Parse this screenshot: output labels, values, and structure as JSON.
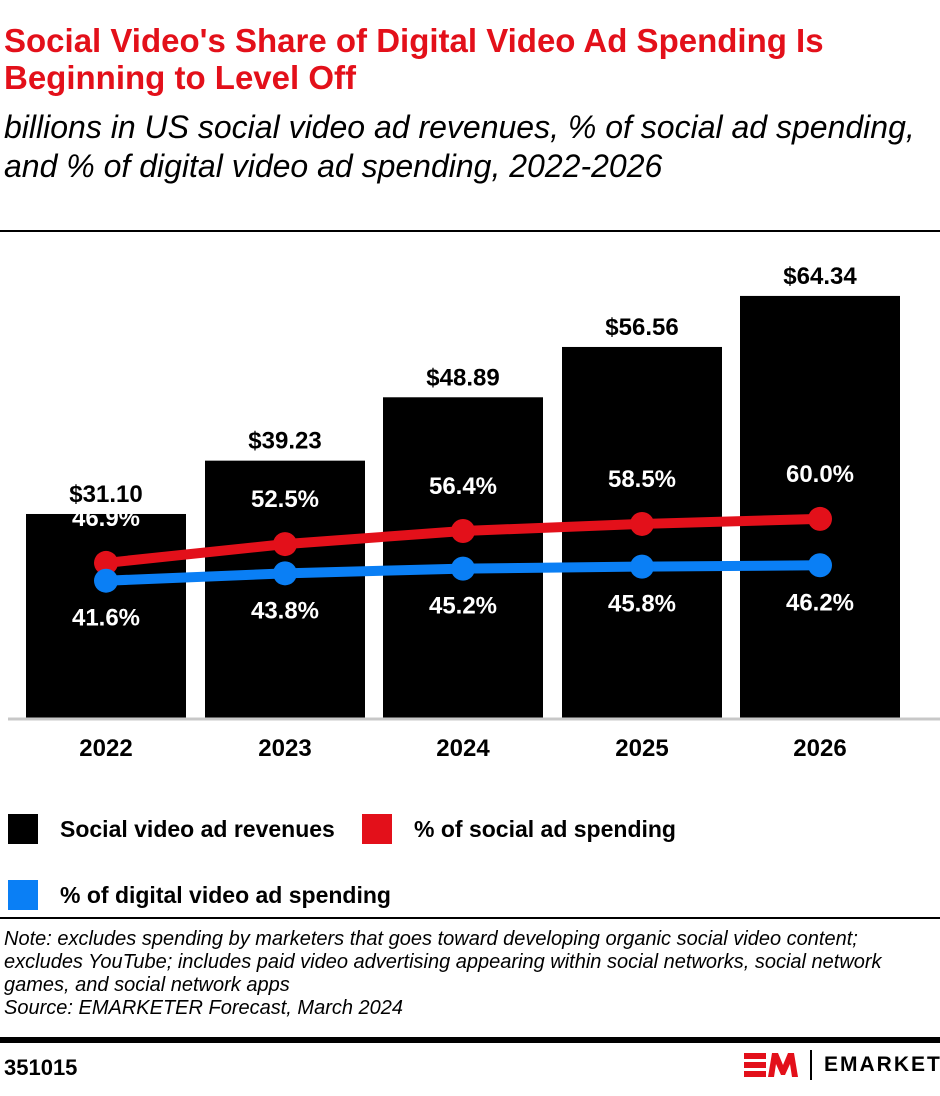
{
  "title": "Social Video's Share of Digital Video Ad Spending Is Beginning to Level Off",
  "subtitle": "billions in US social video ad revenues, % of social ad spending, and % of digital video ad spending, 2022-2026",
  "chart_data": {
    "type": "bar",
    "categories": [
      "2022",
      "2023",
      "2024",
      "2025",
      "2026"
    ],
    "series": [
      {
        "name": "Social video ad revenues",
        "type": "bar",
        "values": [
          31.1,
          39.23,
          48.89,
          56.56,
          64.34
        ],
        "labels": [
          "$31.10",
          "$39.23",
          "$48.89",
          "$56.56",
          "$64.34"
        ],
        "color": "#000000"
      },
      {
        "name": "% of social ad spending",
        "type": "line",
        "values": [
          46.9,
          52.5,
          56.4,
          58.5,
          60.0
        ],
        "labels": [
          "46.9%",
          "52.5%",
          "56.4%",
          "58.5%",
          "60.0%"
        ],
        "color": "#e3101a"
      },
      {
        "name": "% of digital video ad spending",
        "type": "line",
        "values": [
          41.6,
          43.8,
          45.2,
          45.8,
          46.2
        ],
        "labels": [
          "41.6%",
          "43.8%",
          "45.2%",
          "45.8%",
          "46.2%"
        ],
        "color": "#0a7ff5"
      }
    ],
    "grid": false,
    "legend": "bottom"
  },
  "note": "Note: excludes spending by marketers that goes toward developing organic social video content; excludes YouTube; includes paid video advertising appearing within social networks, social network games, and social network apps",
  "source": "Source: EMARKETER Forecast, March 2024",
  "chart_id": "351015",
  "brand": "EMARKETER"
}
